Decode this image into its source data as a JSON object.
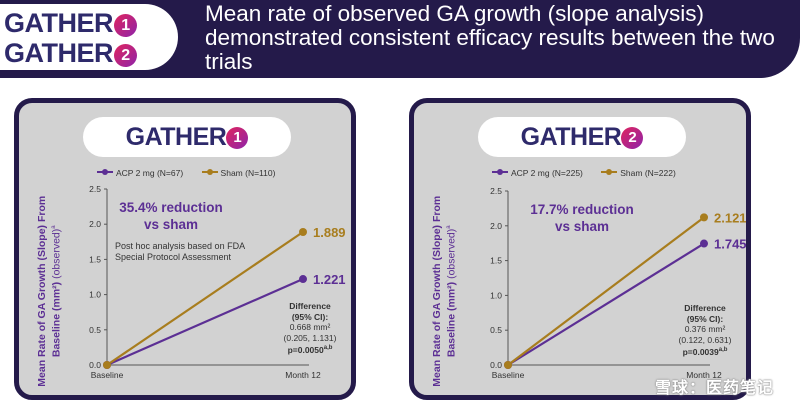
{
  "header": {
    "logo_line1": "GATHER",
    "logo_num1": "1",
    "logo_line2": "GATHER",
    "logo_num2": "2",
    "headline": "Mean rate of observed GA growth (slope analysis) demonstrated consistent efficacy results between the two trials"
  },
  "colors": {
    "navy": "#241a4a",
    "acp": "#5c2f94",
    "sham": "#a87d1e",
    "panel_bg": "#d2d2d2"
  },
  "chart_data": [
    {
      "type": "line",
      "trial_logo": "GATHER",
      "trial_num": "1",
      "legend": [
        "ACP 2 mg (N=67)",
        "Sham (N=110)"
      ],
      "ylabel": "Mean Rate of GA Growth (Slope) From Baseline (mm²)",
      "ylabel_sub": "(observed)",
      "ylabel_sup": "a",
      "categories": [
        "Baseline",
        "Month 12"
      ],
      "yticks": [
        "0.0",
        "0.5",
        "1.0",
        "1.5",
        "2.0",
        "2.5"
      ],
      "ylim": [
        0,
        2.5
      ],
      "series": [
        {
          "name": "ACP 2 mg",
          "values": [
            0,
            1.221
          ],
          "label": "1.221"
        },
        {
          "name": "Sham",
          "values": [
            0,
            1.889
          ],
          "label": "1.889"
        }
      ],
      "reduction_line1": "35.4% reduction",
      "reduction_line2": "vs sham",
      "note": "Post hoc analysis based on FDA Special Protocol Assessment",
      "diff_title": "Difference",
      "diff_ci": "(95% CI):",
      "diff_value": "0.668 mm²",
      "diff_range": "(0.205, 1.131)",
      "diff_p": "p=0.0050",
      "diff_p_sup": "a,b"
    },
    {
      "type": "line",
      "trial_logo": "GATHER",
      "trial_num": "2",
      "legend": [
        "ACP 2 mg (N=225)",
        "Sham (N=222)"
      ],
      "ylabel": "Mean Rate of GA Growth (Slope) From Baseline (mm²)",
      "ylabel_sub": "(observed)",
      "ylabel_sup": "a",
      "categories": [
        "Baseline",
        "Month 12"
      ],
      "yticks": [
        "0.0",
        "0.5",
        "1.0",
        "1.5",
        "2.0",
        "2.5"
      ],
      "ylim": [
        0,
        2.5
      ],
      "series": [
        {
          "name": "ACP 2 mg",
          "values": [
            0,
            1.745
          ],
          "label": "1.745"
        },
        {
          "name": "Sham",
          "values": [
            0,
            2.121
          ],
          "label": "2.121"
        }
      ],
      "reduction_line1": "17.7% reduction",
      "reduction_line2": "vs sham",
      "note": "",
      "diff_title": "Difference",
      "diff_ci": "(95% CI):",
      "diff_value": "0.376 mm²",
      "diff_range": "(0.122, 0.631)",
      "diff_p": "p=0.0039",
      "diff_p_sup": "a,b"
    }
  ],
  "watermark": "雪球：医药笔记"
}
